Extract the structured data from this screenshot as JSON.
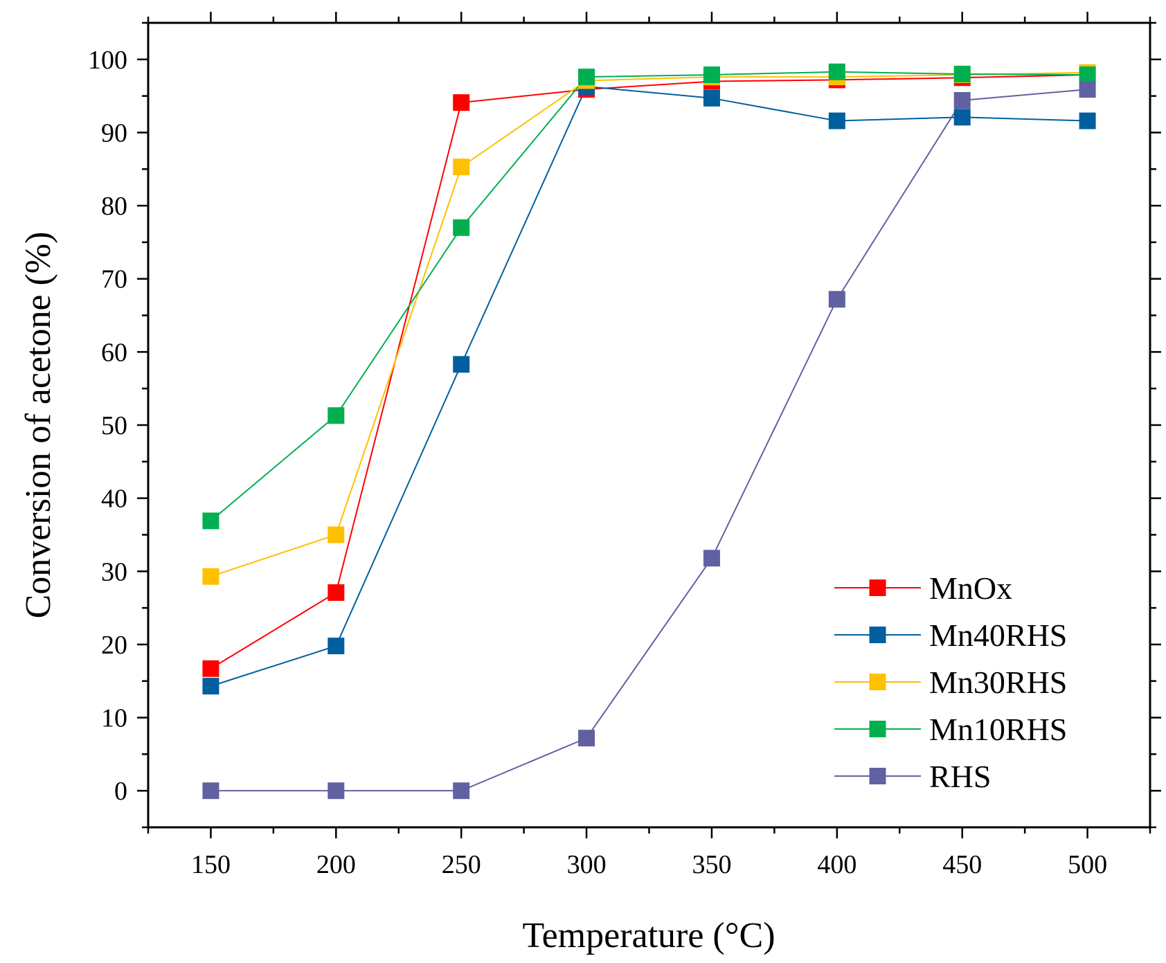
{
  "chart_data": {
    "type": "line",
    "title": "",
    "xlabel": "Temperature (°C)",
    "ylabel": "Conversion of acetone (%)",
    "xlim": [
      125,
      525
    ],
    "ylim": [
      -5,
      105
    ],
    "x": [
      150,
      200,
      250,
      300,
      350,
      400,
      450,
      500
    ],
    "x_ticks": [
      150,
      200,
      250,
      300,
      350,
      400,
      450,
      500
    ],
    "x_tick_labels": [
      "150",
      "200",
      "250",
      "300",
      "350",
      "400",
      "450",
      "500"
    ],
    "y_ticks": [
      0,
      10,
      20,
      30,
      40,
      50,
      60,
      70,
      80,
      90,
      100
    ],
    "y_tick_labels": [
      "0",
      "10",
      "20",
      "30",
      "40",
      "50",
      "60",
      "70",
      "80",
      "90",
      "100"
    ],
    "grid": false,
    "legend_position": "bottom-right",
    "series": [
      {
        "name": "MnOx",
        "color": "#ff0000",
        "values": [
          16.7,
          27.1,
          94.1,
          95.9,
          97.0,
          97.2,
          97.5,
          97.9
        ]
      },
      {
        "name": "Mn40RHS",
        "color": "#005f9e",
        "values": [
          14.3,
          19.8,
          58.3,
          96.3,
          94.7,
          91.6,
          92.1,
          91.6
        ]
      },
      {
        "name": "Mn30RHS",
        "color": "#ffc000",
        "values": [
          29.3,
          35.0,
          85.3,
          97.1,
          97.6,
          97.6,
          97.9,
          98.2
        ]
      },
      {
        "name": "Mn10RHS",
        "color": "#00b050",
        "values": [
          36.9,
          51.3,
          77.0,
          97.6,
          97.9,
          98.3,
          98.0,
          97.9
        ]
      },
      {
        "name": "RHS",
        "color": "#6161a1",
        "values": [
          0.0,
          0.0,
          0.0,
          7.2,
          31.8,
          67.2,
          94.4,
          95.9
        ]
      }
    ]
  }
}
